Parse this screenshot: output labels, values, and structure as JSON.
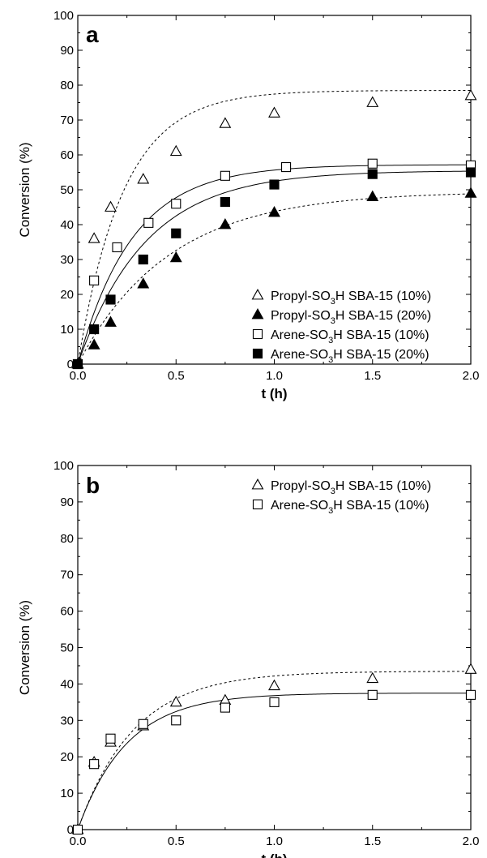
{
  "chart_data": [
    {
      "type": "scatter",
      "panel_label": "a",
      "xlabel": "t (h)",
      "ylabel": "Conversion (%)",
      "xlim": [
        0,
        2.0
      ],
      "ylim": [
        0,
        100
      ],
      "xticks": [
        "0.0",
        "0.5",
        "1.0",
        "1.5",
        "2.0"
      ],
      "yticks": [
        "0",
        "10",
        "20",
        "30",
        "40",
        "50",
        "60",
        "70",
        "80",
        "90",
        "100"
      ],
      "legend_position": "bottom-right",
      "series": [
        {
          "name": "Propyl-SO3H SBA-15 (10%)",
          "label_parts": [
            "Propyl-SO",
            "3",
            "H SBA-15 (10%)"
          ],
          "marker": "triangle-open",
          "line": "dashed",
          "x": [
            0,
            0.083,
            0.167,
            0.333,
            0.5,
            0.75,
            1.0,
            1.5,
            2.0
          ],
          "y": [
            0,
            36,
            45,
            53,
            61,
            69,
            72,
            75,
            77
          ],
          "fit_kmax": 78.5,
          "fit_k": 4.3
        },
        {
          "name": "Propyl-SO3H SBA-15 (20%)",
          "label_parts": [
            "Propyl-SO",
            "3",
            "H SBA-15 (20%)"
          ],
          "marker": "triangle-filled",
          "line": "dashed",
          "x": [
            0,
            0.083,
            0.167,
            0.333,
            0.5,
            0.75,
            1.0,
            1.5,
            2.0
          ],
          "y": [
            0,
            5.5,
            12,
            23,
            30.5,
            40,
            43.5,
            48,
            49
          ],
          "fit_kmax": 49.5,
          "fit_k": 2.15
        },
        {
          "name": "Arene-SO3H SBA-15 (10%)",
          "label_parts": [
            "Arene-SO",
            "3",
            "H SBA-15 (10%)"
          ],
          "marker": "square-open",
          "line": "solid",
          "x": [
            0,
            0.083,
            0.2,
            0.36,
            0.5,
            0.75,
            1.06,
            1.5,
            2.0
          ],
          "y": [
            0,
            24,
            33.5,
            40.5,
            46,
            54,
            56.5,
            57.5,
            57
          ],
          "fit_kmax": 57.2,
          "fit_k": 3.6
        },
        {
          "name": "Arene-SO3H SBA-15 (20%)",
          "label_parts": [
            "Arene-SO",
            "3",
            "H SBA-15 (20%)"
          ],
          "marker": "square-filled",
          "line": "solid",
          "x": [
            0,
            0.083,
            0.167,
            0.333,
            0.5,
            0.75,
            1.0,
            1.5,
            2.0
          ],
          "y": [
            0,
            10,
            18.5,
            30,
            37.5,
            46.5,
            51.5,
            54.5,
            55
          ],
          "fit_kmax": 55.5,
          "fit_k": 2.9
        }
      ]
    },
    {
      "type": "scatter",
      "panel_label": "b",
      "xlabel": "t (h)",
      "ylabel": "Conversion (%)",
      "xlim": [
        0,
        2.0
      ],
      "ylim": [
        0,
        100
      ],
      "xticks": [
        "0.0",
        "0.5",
        "1.0",
        "1.5",
        "2.0"
      ],
      "yticks": [
        "0",
        "10",
        "20",
        "30",
        "40",
        "50",
        "60",
        "70",
        "80",
        "90",
        "100"
      ],
      "legend_position": "top-right",
      "series": [
        {
          "name": "Propyl-SO3H SBA-15 (10%)",
          "label_parts": [
            "Propyl-SO",
            "3",
            "H SBA-15 (10%)"
          ],
          "marker": "triangle-open",
          "line": "dashed",
          "x": [
            0,
            0.083,
            0.167,
            0.333,
            0.5,
            0.75,
            1.0,
            1.5,
            2.0
          ],
          "y": [
            0,
            18.5,
            24,
            28.5,
            35,
            35.5,
            39.5,
            41.5,
            44
          ],
          "fit_kmax": 43.5,
          "fit_k": 3.5
        },
        {
          "name": "Arene-SO3H SBA-15 (10%)",
          "label_parts": [
            "Arene-SO",
            "3",
            "H SBA-15 (10%)"
          ],
          "marker": "square-open",
          "line": "solid",
          "x": [
            0,
            0.083,
            0.167,
            0.333,
            0.5,
            0.75,
            1.0,
            1.5,
            2.0
          ],
          "y": [
            0,
            18,
            25,
            29,
            30,
            33.5,
            35,
            37,
            37
          ],
          "fit_kmax": 37.5,
          "fit_k": 4.0
        }
      ]
    }
  ]
}
